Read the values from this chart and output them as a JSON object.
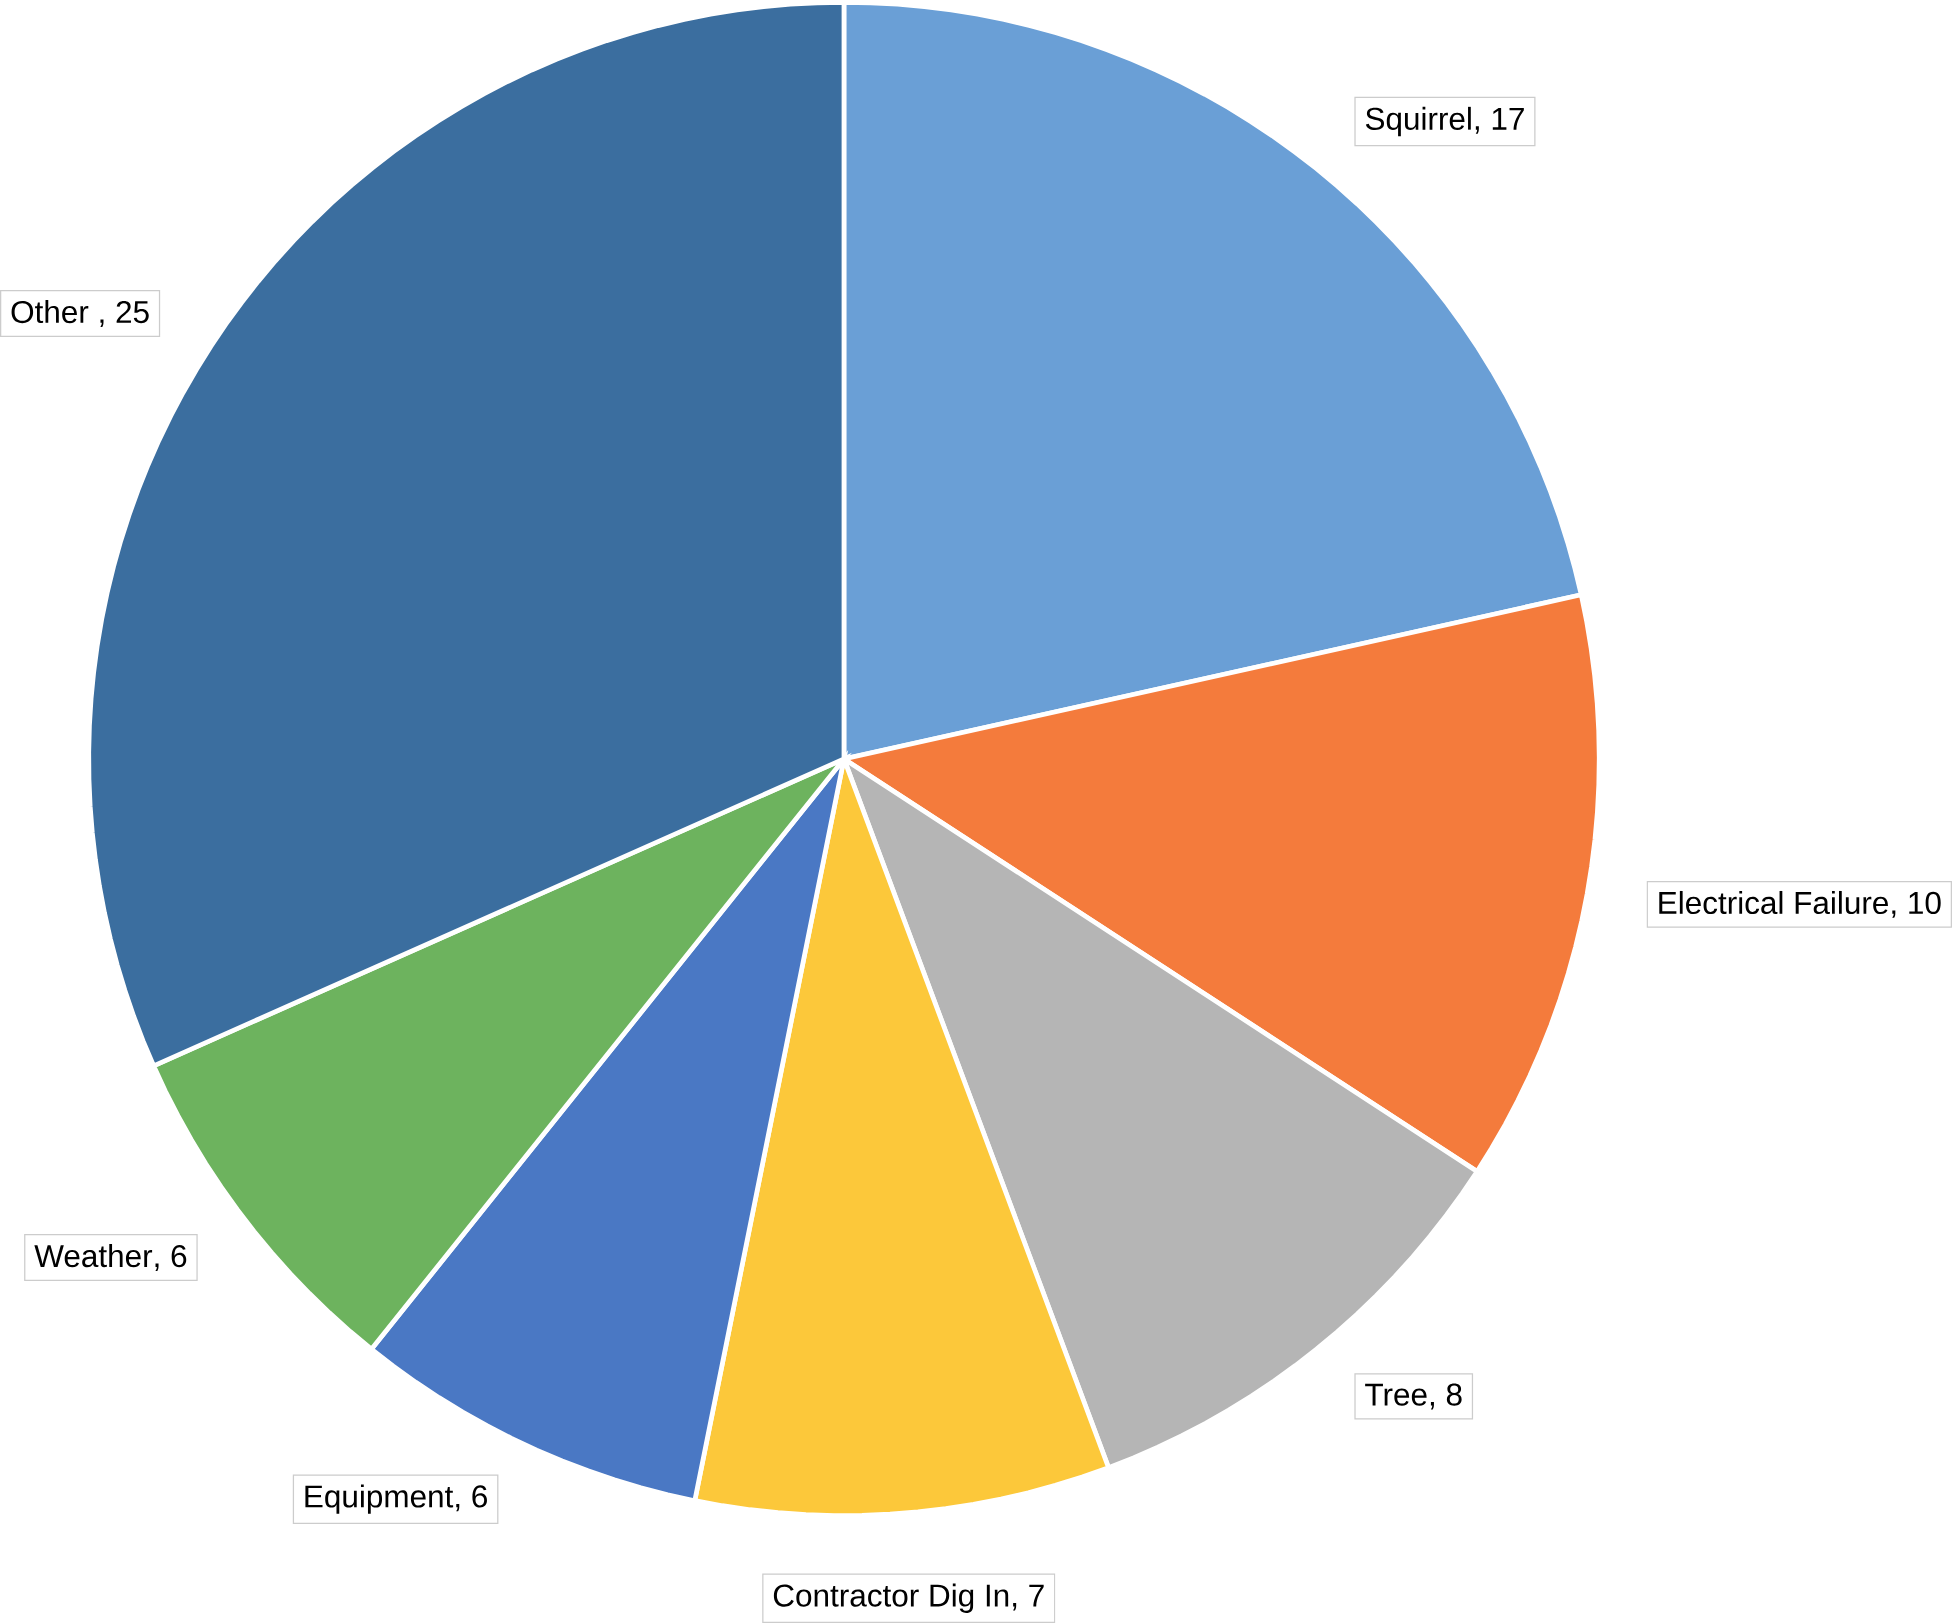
{
  "chart_data": {
    "type": "pie",
    "categories": [
      "Squirrel",
      "Electrical Failure",
      "Tree",
      "Contractor Dig In",
      "Equipment",
      "Weather",
      "Other"
    ],
    "values": [
      17,
      10,
      8,
      7,
      6,
      6,
      25
    ],
    "value_labels": [
      ", 17",
      ", 10",
      ", 8",
      ", 7",
      ", 6",
      ", 6",
      " , 25"
    ],
    "colors": [
      "#6a9fd6",
      "#f47b3c",
      "#b5b5b5",
      "#fcc83a",
      "#4a78c4",
      "#6db35e",
      "#3b6e9f"
    ]
  }
}
